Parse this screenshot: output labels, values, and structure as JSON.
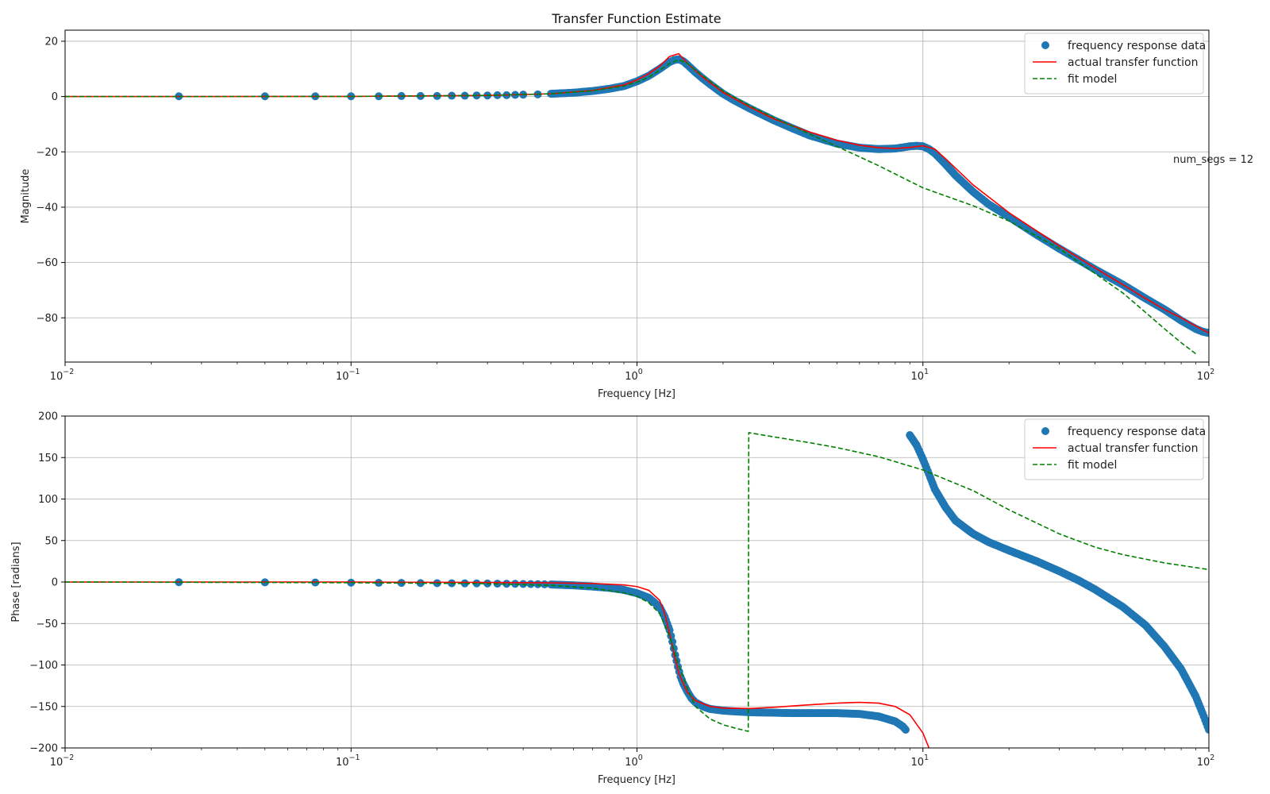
{
  "chart_data": [
    {
      "type": "line",
      "title": "Transfer Function Estimate",
      "xlabel": "Frequency [Hz]",
      "ylabel": "Magnitude",
      "xscale": "log",
      "xlim": [
        0.01,
        100
      ],
      "ylim": [
        -96,
        24
      ],
      "yticks": [
        20,
        0,
        -20,
        -40,
        -60,
        -80
      ],
      "xticks": [
        {
          "base": "10",
          "exp": "−2"
        },
        {
          "base": "10",
          "exp": "−1"
        },
        {
          "base": "10",
          "exp": "0"
        },
        {
          "base": "10",
          "exp": "1"
        },
        {
          "base": "10",
          "exp": "2"
        }
      ],
      "grid": true,
      "legend_position": "top-right",
      "annotation": "num_segs = 12",
      "series": [
        {
          "name": "frequency response data",
          "style": "markers",
          "color": "#1f77b4",
          "x": [
            0.025,
            0.05,
            0.075,
            0.1,
            0.125,
            0.15,
            0.175,
            0.2,
            0.225,
            0.25,
            0.275,
            0.3,
            0.325,
            0.35,
            0.375,
            0.4,
            0.45,
            0.5,
            0.55,
            0.6,
            0.7,
            0.8,
            0.9,
            1.0,
            1.1,
            1.2,
            1.3,
            1.35,
            1.4,
            1.45,
            1.5,
            1.6,
            1.7,
            1.8,
            2.0,
            2.2,
            2.5,
            3.0,
            3.5,
            4.0,
            5.0,
            6.0,
            7.0,
            8.0,
            9.0,
            9.5,
            10.0,
            10.5,
            11.0,
            12.0,
            13.0,
            15.0,
            17.0,
            20.0,
            25.0,
            30.0,
            35.0,
            40.0,
            50.0,
            60.0,
            70.0,
            80.0,
            90.0,
            95.0,
            100.0
          ],
          "y": [
            0.1,
            0.1,
            0.1,
            0.1,
            0.1,
            0.2,
            0.2,
            0.2,
            0.3,
            0.3,
            0.4,
            0.4,
            0.5,
            0.5,
            0.6,
            0.7,
            0.8,
            1.0,
            1.2,
            1.4,
            2.0,
            2.8,
            3.8,
            5.5,
            7.5,
            10.0,
            12.5,
            13.2,
            13.5,
            12.8,
            11.5,
            8.8,
            6.5,
            4.5,
            1.0,
            -1.5,
            -4.5,
            -8.5,
            -11.5,
            -14.0,
            -17.0,
            -18.5,
            -19.0,
            -18.8,
            -18.0,
            -17.8,
            -18.0,
            -19.0,
            -20.5,
            -24.5,
            -28.5,
            -34.5,
            -39.0,
            -43.5,
            -50.0,
            -55.0,
            -59.0,
            -62.5,
            -68.0,
            -73.0,
            -77.0,
            -81.0,
            -84.0,
            -85.0,
            -85.5
          ]
        },
        {
          "name": "actual transfer function",
          "style": "solid",
          "color": "#ff0000",
          "x": [
            0.01,
            0.1,
            0.3,
            0.5,
            0.7,
            0.9,
            1.0,
            1.1,
            1.2,
            1.3,
            1.4,
            1.5,
            1.7,
            2.0,
            2.5,
            3.0,
            4.0,
            5.0,
            6.0,
            7.0,
            8.0,
            9.0,
            10.0,
            11.0,
            12.0,
            15.0,
            20.0,
            30.0,
            40.0,
            50.0,
            60.0,
            70.0,
            80.0,
            90.0,
            100.0
          ],
          "y": [
            0,
            0.05,
            0.4,
            1.0,
            2.2,
            4.2,
            6.0,
            8.3,
            11.0,
            14.5,
            15.5,
            12.0,
            7.0,
            1.5,
            -4.0,
            -8.0,
            -12.8,
            -15.8,
            -17.6,
            -18.5,
            -18.8,
            -18.4,
            -17.8,
            -19.0,
            -22.5,
            -32.0,
            -42.0,
            -54.0,
            -62.0,
            -68.0,
            -73.0,
            -77.0,
            -80.0,
            -83.0,
            -85.5
          ]
        },
        {
          "name": "fit model",
          "style": "dashed",
          "color": "#008000",
          "x": [
            0.01,
            0.1,
            0.3,
            0.5,
            0.7,
            0.9,
            1.0,
            1.1,
            1.2,
            1.3,
            1.4,
            1.5,
            1.7,
            2.0,
            2.5,
            3.0,
            4.0,
            5.0,
            7.0,
            10.0,
            15.0,
            20.0,
            30.0,
            40.0,
            50.0,
            60.0,
            70.0,
            80.0,
            90.0
          ],
          "y": [
            0,
            0.05,
            0.4,
            1.0,
            2.1,
            3.8,
            5.2,
            7.0,
            9.5,
            12.0,
            13.3,
            12.0,
            7.5,
            2.0,
            -3.5,
            -7.5,
            -13.5,
            -18.0,
            -25.0,
            -33.0,
            -39.5,
            -45.0,
            -55.0,
            -64.0,
            -71.0,
            -78.0,
            -84.0,
            -89.0,
            -93.0
          ]
        }
      ]
    },
    {
      "type": "line",
      "title": "",
      "xlabel": "Frequency [Hz]",
      "ylabel": "Phase [radians]",
      "xscale": "log",
      "xlim": [
        0.01,
        100
      ],
      "ylim": [
        -200,
        200
      ],
      "yticks": [
        200,
        150,
        100,
        50,
        0,
        -50,
        -100,
        -150,
        -200
      ],
      "xticks": [
        {
          "base": "10",
          "exp": "−2"
        },
        {
          "base": "10",
          "exp": "−1"
        },
        {
          "base": "10",
          "exp": "0"
        },
        {
          "base": "10",
          "exp": "1"
        },
        {
          "base": "10",
          "exp": "2"
        }
      ],
      "grid": true,
      "legend_position": "top-right",
      "series": [
        {
          "name": "frequency response data",
          "style": "markers",
          "color": "#1f77b4",
          "x": [
            0.025,
            0.05,
            0.075,
            0.1,
            0.125,
            0.15,
            0.175,
            0.2,
            0.225,
            0.25,
            0.275,
            0.3,
            0.325,
            0.35,
            0.375,
            0.4,
            0.425,
            0.45,
            0.475,
            0.5,
            0.6,
            0.7,
            0.8,
            0.9,
            1.0,
            1.1,
            1.2,
            1.25,
            1.3,
            1.33,
            1.36,
            1.39,
            1.42,
            1.45,
            1.5,
            1.55,
            1.6,
            1.7,
            1.8,
            2.0,
            2.2,
            2.5,
            3.0,
            3.5,
            4.0,
            5.0,
            6.0,
            7.0,
            8.0,
            8.5,
            8.7,
            9.0,
            9.5,
            10.0,
            10.5,
            11.0,
            12.0,
            13.0,
            15.0,
            17.0,
            20.0,
            25.0,
            30.0,
            35.0,
            40.0,
            50.0,
            60.0,
            70.0,
            80.0,
            90.0,
            95.0,
            100.0
          ],
          "y": [
            -0.2,
            -0.4,
            -0.6,
            -0.8,
            -1.0,
            -1.1,
            -1.3,
            -1.4,
            -1.5,
            -1.6,
            -1.7,
            -1.8,
            -2.0,
            -2.1,
            -2.2,
            -2.4,
            -2.5,
            -2.6,
            -2.8,
            -3.0,
            -4.0,
            -5.5,
            -7.0,
            -9.5,
            -13.5,
            -19.0,
            -30.0,
            -42.0,
            -58.0,
            -72.0,
            -88.0,
            -102.0,
            -114.0,
            -122.0,
            -132.0,
            -140.0,
            -145.0,
            -150.0,
            -153.0,
            -155.0,
            -156.0,
            -157.0,
            -157.5,
            -158.0,
            -158.0,
            -158.0,
            -159.0,
            -162.0,
            -168.0,
            -174.0,
            -178.0,
            177.0,
            165.0,
            148.0,
            130.0,
            112.0,
            90.0,
            74.0,
            58.0,
            48.0,
            38.0,
            25.0,
            13.0,
            2.0,
            -9.0,
            -30.0,
            -52.0,
            -78.0,
            -105.0,
            -138.0,
            -158.0,
            -178.0
          ]
        },
        {
          "name": "actual transfer function",
          "style": "solid",
          "color": "#ff0000",
          "x": [
            0.01,
            0.1,
            0.3,
            0.5,
            0.7,
            0.9,
            1.0,
            1.1,
            1.2,
            1.25,
            1.3,
            1.35,
            1.4,
            1.5,
            1.6,
            1.8,
            2.0,
            2.5,
            3.0,
            4.0,
            5.0,
            6.0,
            7.0,
            8.0,
            9.0,
            10.0,
            10.5
          ],
          "y": [
            0,
            -0.1,
            -0.5,
            -1.0,
            -1.8,
            -3.5,
            -5.5,
            -10.0,
            -22.0,
            -38.0,
            -62.0,
            -88.0,
            -110.0,
            -133.0,
            -143.0,
            -150.0,
            -152.0,
            -152.5,
            -151.0,
            -148.0,
            -146.0,
            -145.0,
            -146.0,
            -150.0,
            -160.0,
            -182.0,
            -200.0
          ]
        },
        {
          "name": "fit model",
          "style": "dashed",
          "color": "#008000",
          "x": [
            0.01,
            0.1,
            0.3,
            0.5,
            0.7,
            0.9,
            1.0,
            1.1,
            1.2,
            1.3,
            1.4,
            1.5,
            1.6,
            1.8,
            2.0,
            2.2,
            2.45,
            2.46,
            3.0,
            4.0,
            5.0,
            7.0,
            10.0,
            15.0,
            20.0,
            30.0,
            40.0,
            50.0,
            70.0,
            100.0
          ],
          "y": [
            0,
            -0.8,
            -2.0,
            -4.0,
            -7.5,
            -13.0,
            -17.0,
            -25.0,
            -38.0,
            -65.0,
            -100.0,
            -128.0,
            -150.0,
            -165.0,
            -172.0,
            -176.0,
            -180.0,
            180.0,
            175.0,
            168.0,
            162.0,
            151.0,
            135.0,
            110.0,
            87.0,
            58.0,
            42.0,
            33.0,
            23.0,
            15.0
          ]
        }
      ]
    }
  ]
}
